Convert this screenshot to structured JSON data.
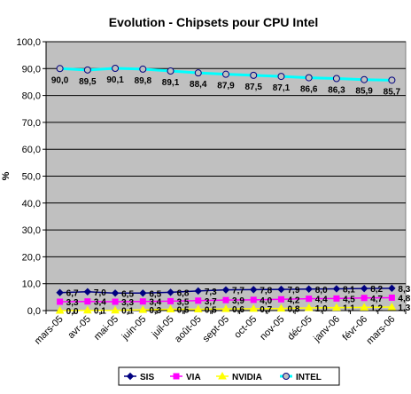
{
  "chart_data": {
    "type": "line",
    "title": "Evolution - Chipsets pour CPU Intel",
    "xlabel": "",
    "ylabel": "%",
    "ylim": [
      0,
      100
    ],
    "yticks": [
      "0,0",
      "10,0",
      "20,0",
      "30,0",
      "40,0",
      "50,0",
      "60,0",
      "70,0",
      "80,0",
      "90,0",
      "100,0"
    ],
    "grid": true,
    "legend_position": "bottom",
    "categories": [
      "mars-05",
      "avr-05",
      "mai-05",
      "juin-05",
      "juil-05",
      "août-05",
      "sept-05",
      "oct-05",
      "nov-05",
      "déc-05",
      "janv-06",
      "févr-06",
      "mars-06"
    ],
    "series": [
      {
        "name": "SIS",
        "color": "#000080",
        "marker": "diamond",
        "values": [
          6.7,
          7.0,
          6.5,
          6.5,
          6.8,
          7.3,
          7.7,
          7.8,
          7.9,
          8.0,
          8.1,
          8.2,
          8.3
        ],
        "labels": [
          "6,7",
          "7,0",
          "6,5",
          "6,5",
          "6,8",
          "7,3",
          "7,7",
          "7,8",
          "7,9",
          "8,0",
          "8,1",
          "8,2",
          "8,3"
        ]
      },
      {
        "name": "VIA",
        "color": "#ff00ff",
        "marker": "square",
        "values": [
          3.3,
          3.4,
          3.3,
          3.4,
          3.5,
          3.7,
          3.9,
          4.0,
          4.2,
          4.4,
          4.5,
          4.7,
          4.8
        ],
        "labels": [
          "3,3",
          "3,4",
          "3,3",
          "3,4",
          "3,5",
          "3,7",
          "3,9",
          "4,0",
          "4,2",
          "4,4",
          "4,5",
          "4,7",
          "4,8"
        ]
      },
      {
        "name": "NVIDIA",
        "color": "#ffff00",
        "marker": "triangle",
        "values": [
          0.0,
          0.1,
          0.1,
          0.3,
          0.5,
          0.5,
          0.6,
          0.7,
          0.8,
          1.0,
          1.1,
          1.2,
          1.3
        ],
        "labels": [
          "0,0",
          "0,1",
          "0,1",
          "0,3",
          "0,5",
          "0,5",
          "0,6",
          "0,7",
          "0,8",
          "1,0",
          "1,1",
          "1,2",
          "1,3"
        ]
      },
      {
        "name": "INTEL",
        "color": "#00ffff",
        "marker": "circle",
        "values": [
          90.0,
          89.5,
          90.1,
          89.8,
          89.1,
          88.4,
          87.9,
          87.5,
          87.1,
          86.6,
          86.3,
          85.9,
          85.7
        ],
        "labels": [
          "90,0",
          "89,5",
          "90,1",
          "89,8",
          "89,1",
          "88,4",
          "87,9",
          "87,5",
          "87,1",
          "86,6",
          "86,3",
          "85,9",
          "85,7"
        ]
      }
    ],
    "colors": {
      "plot_background": "#c0c0c0",
      "gridline": "#000000"
    }
  }
}
